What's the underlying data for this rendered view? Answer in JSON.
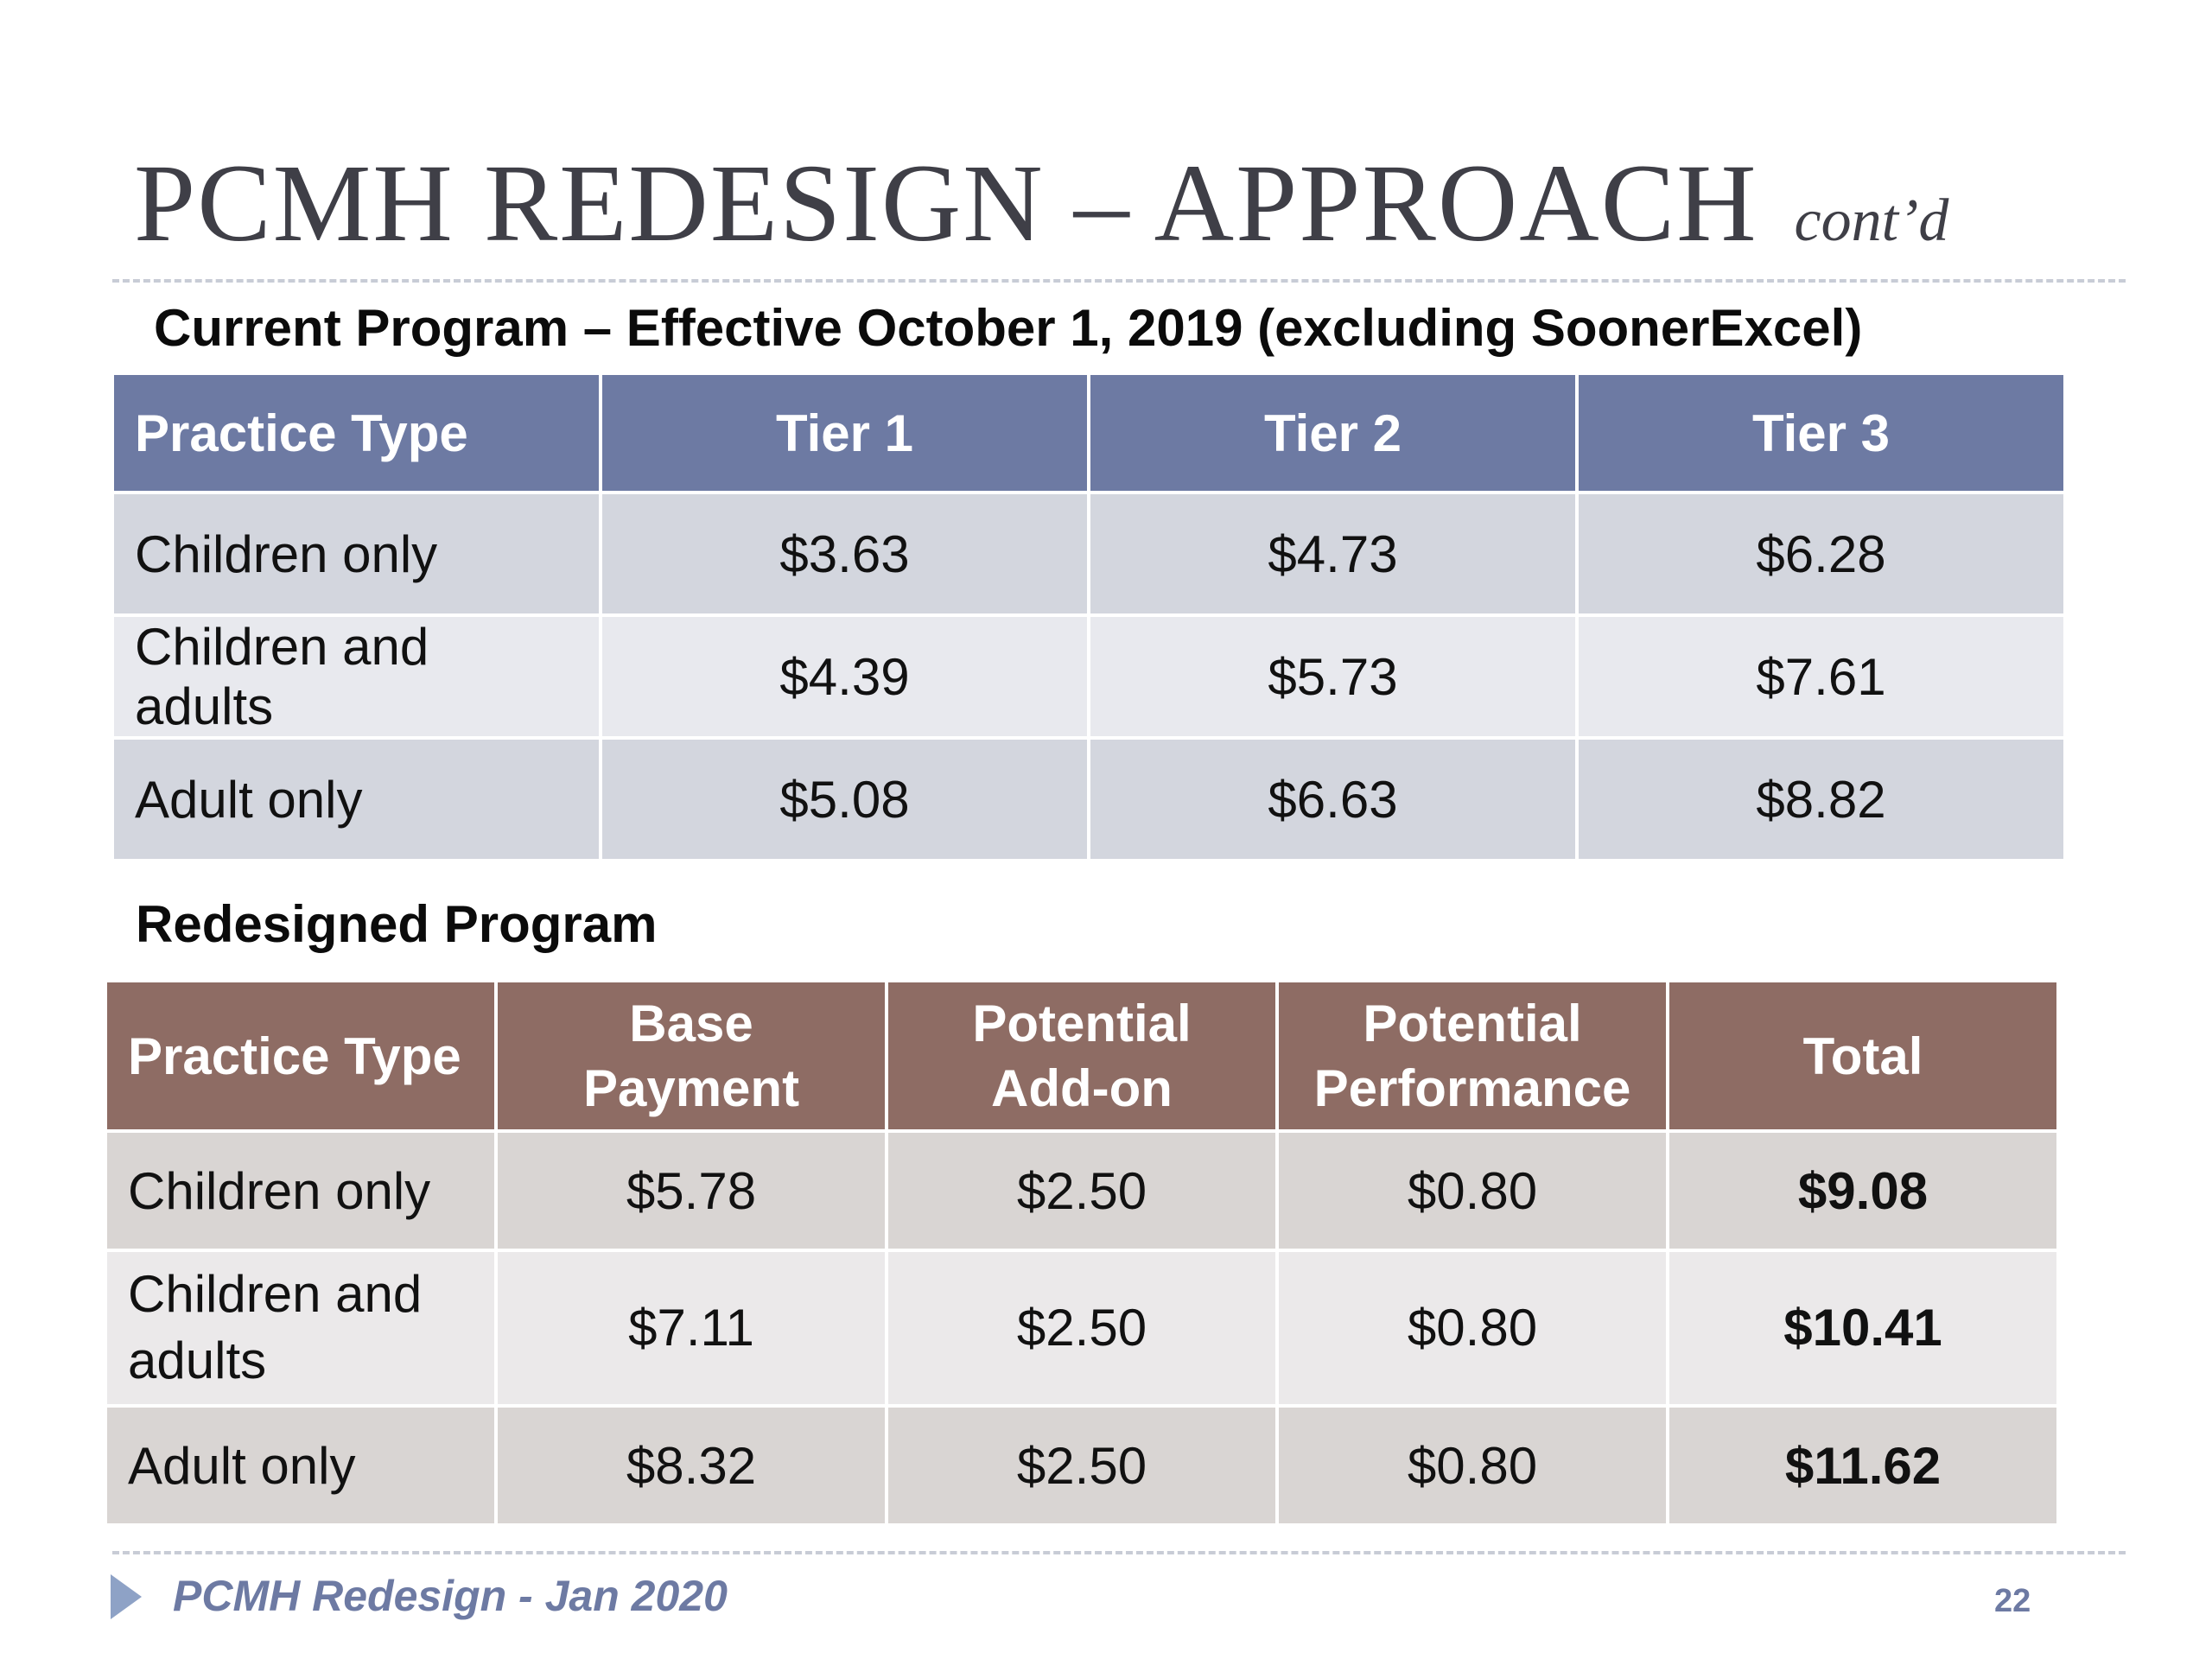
{
  "title": {
    "main": "PCMH REDESIGN – APPROACH",
    "suffix": "cont’d"
  },
  "current": {
    "heading": "Current Program – Effective October 1, 2019 (excluding SoonerExcel)",
    "headers": [
      "Practice Type",
      "Tier 1",
      "Tier 2",
      "Tier 3"
    ],
    "rows": [
      [
        "Children only",
        "$3.63",
        "$4.73",
        "$6.28"
      ],
      [
        "Children and adults",
        "$4.39",
        "$5.73",
        "$7.61"
      ],
      [
        "Adult only",
        "$5.08",
        "$6.63",
        "$8.82"
      ]
    ]
  },
  "redesigned": {
    "heading": "Redesigned Program",
    "headers": [
      "Practice Type",
      "Base Payment",
      "Potential Add-on",
      "Potential Performance",
      "Total"
    ],
    "rows": [
      [
        "Children only",
        "$5.78",
        "$2.50",
        "$0.80",
        "$9.08"
      ],
      [
        "Children and adults",
        "$7.11",
        "$2.50",
        "$0.80",
        "$10.41"
      ],
      [
        "Adult only",
        "$8.32",
        "$2.50",
        "$0.80",
        "$11.62"
      ]
    ]
  },
  "footer": {
    "text": "PCMH Redesign - Jan 2020",
    "page": "22"
  },
  "colors": {
    "current_header": "#6d7aa3",
    "redesigned_header": "#8e6c64",
    "footer_text": "#6d7aa3"
  }
}
